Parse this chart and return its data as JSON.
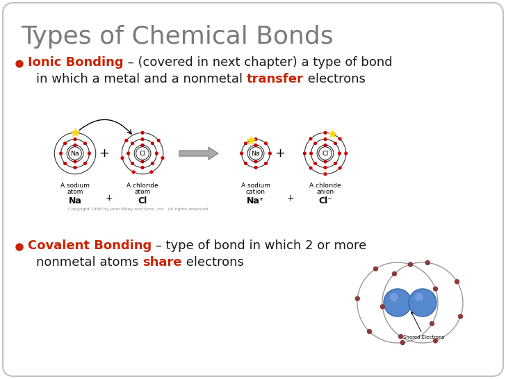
{
  "title": "Types of Chemical Bonds",
  "title_color": "#7a7a7a",
  "title_fontsize": 26,
  "background_color": "#ffffff",
  "bullet_color": "#cc2200",
  "ionic_bold": "Ionic Bonding",
  "ionic_bold_color": "#cc2200",
  "ionic_text1": " – (covered in next chapter) a type of bond",
  "ionic_line2_pre": "in which a metal and a nonmetal ",
  "ionic_highlight": "transfer",
  "ionic_line2_post": " electrons",
  "ionic_text_color": "#1a1a1a",
  "ionic_highlight_color": "#cc2200",
  "covalent_bold": "Covalent Bonding",
  "covalent_bold_color": "#cc2200",
  "covalent_text1": " – type of bond in which 2 or more",
  "covalent_line2_pre": "nonmetal atoms ",
  "covalent_highlight": "share",
  "covalent_line2_post": " electrons",
  "covalent_text_color": "#1a1a1a",
  "covalent_highlight_color": "#cc2200",
  "body_fontsize": 13,
  "border_color": "#c0c0c0",
  "fig_width": 7.28,
  "fig_height": 5.46,
  "fig_dpi": 100
}
